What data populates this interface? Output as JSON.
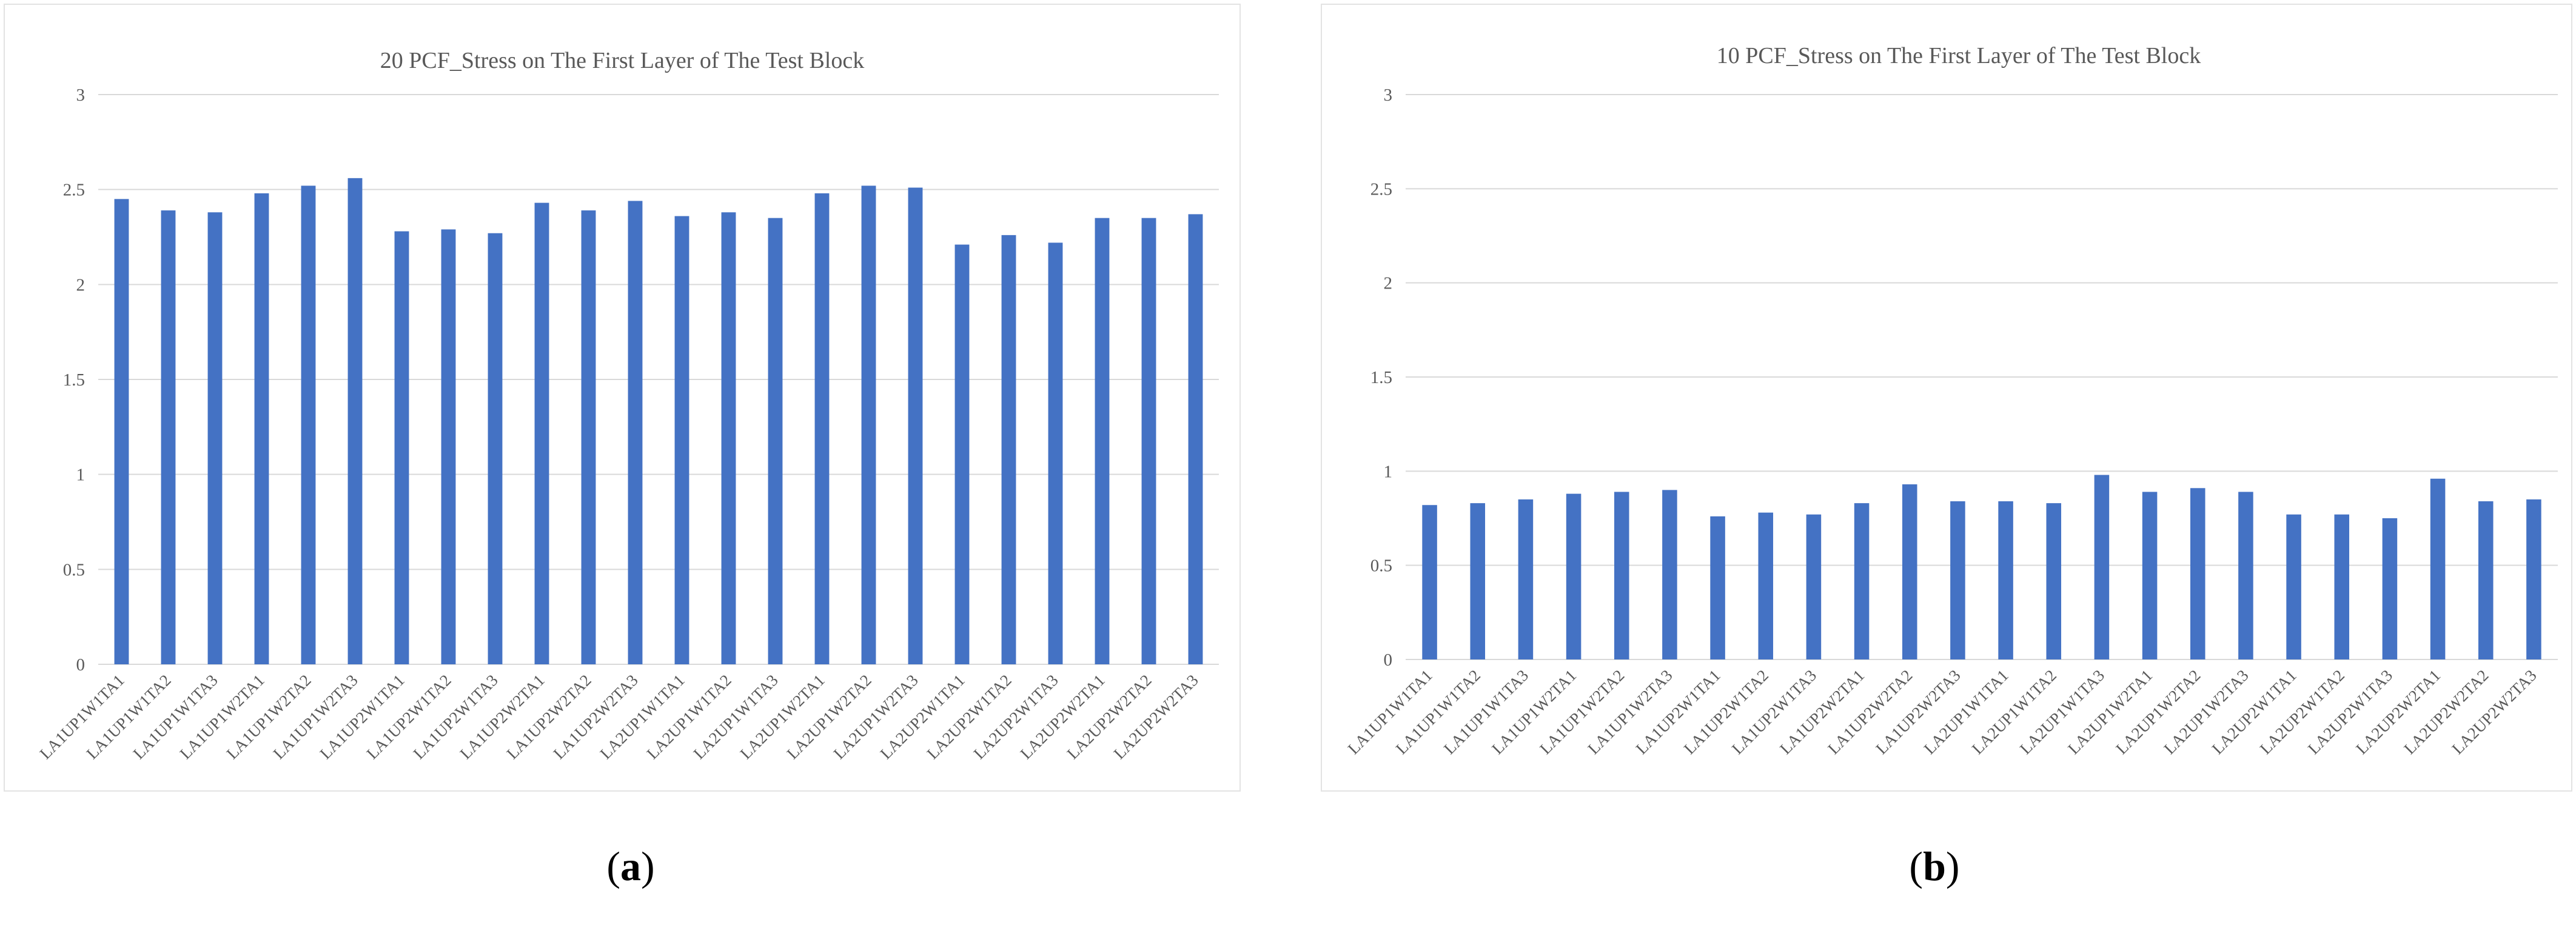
{
  "colors": {
    "bar": "#4472c4",
    "grid": "#d9d9d9",
    "text": "#595959"
  },
  "captions": {
    "a": {
      "open": "(",
      "letter": "a",
      "close": ")"
    },
    "b": {
      "open": "(",
      "letter": "b",
      "close": ")"
    }
  },
  "chart_data": [
    {
      "type": "bar",
      "title": "20 PCF_Stress on The First Layer of The Test Block",
      "xlabel": "",
      "ylabel": "",
      "ylim": [
        0,
        3
      ],
      "yticks": [
        0,
        0.5,
        1,
        1.5,
        2,
        2.5,
        3
      ],
      "grid": true,
      "categories": [
        "LA1UP1W1TA1",
        "LA1UP1W1TA2",
        "LA1UP1W1TA3",
        "LA1UP1W2TA1",
        "LA1UP1W2TA2",
        "LA1UP1W2TA3",
        "LA1UP2W1TA1",
        "LA1UP2W1TA2",
        "LA1UP2W1TA3",
        "LA1UP2W2TA1",
        "LA1UP2W2TA2",
        "LA1UP2W2TA3",
        "LA2UP1W1TA1",
        "LA2UP1W1TA2",
        "LA2UP1W1TA3",
        "LA2UP1W2TA1",
        "LA2UP1W2TA2",
        "LA2UP1W2TA3",
        "LA2UP2W1TA1",
        "LA2UP2W1TA2",
        "LA2UP2W1TA3",
        "LA2UP2W2TA1",
        "LA2UP2W2TA2",
        "LA2UP2W2TA3"
      ],
      "values": [
        2.45,
        2.39,
        2.38,
        2.48,
        2.52,
        2.56,
        2.28,
        2.29,
        2.27,
        2.43,
        2.39,
        2.44,
        2.36,
        2.38,
        2.35,
        2.48,
        2.52,
        2.51,
        2.21,
        2.26,
        2.22,
        2.35,
        2.35,
        2.37
      ]
    },
    {
      "type": "bar",
      "title": "10 PCF_Stress on The First Layer of The Test Block",
      "xlabel": "",
      "ylabel": "",
      "ylim": [
        0,
        3
      ],
      "yticks": [
        0,
        0.5,
        1,
        1.5,
        2,
        2.5,
        3
      ],
      "grid": true,
      "categories": [
        "LA1UP1W1TA1",
        "LA1UP1W1TA2",
        "LA1UP1W1TA3",
        "LA1UP1W2TA1",
        "LA1UP1W2TA2",
        "LA1UP1W2TA3",
        "LA1UP2W1TA1",
        "LA1UP2W1TA2",
        "LA1UP2W1TA3",
        "LA1UP2W2TA1",
        "LA1UP2W2TA2",
        "LA1UP2W2TA3",
        "LA2UP1W1TA1",
        "LA2UP1W1TA2",
        "LA2UP1W1TA3",
        "LA2UP1W2TA1",
        "LA2UP1W2TA2",
        "LA2UP1W2TA3",
        "LA2UP2W1TA1",
        "LA2UP2W1TA2",
        "LA2UP2W1TA3",
        "LA2UP2W2TA1",
        "LA2UP2W2TA2",
        "LA2UP2W2TA3"
      ],
      "values": [
        0.82,
        0.83,
        0.85,
        0.88,
        0.89,
        0.9,
        0.76,
        0.78,
        0.77,
        0.83,
        0.93,
        0.84,
        0.84,
        0.83,
        0.98,
        0.89,
        0.91,
        0.89,
        0.77,
        0.77,
        0.75,
        0.96,
        0.84,
        0.85
      ]
    }
  ]
}
